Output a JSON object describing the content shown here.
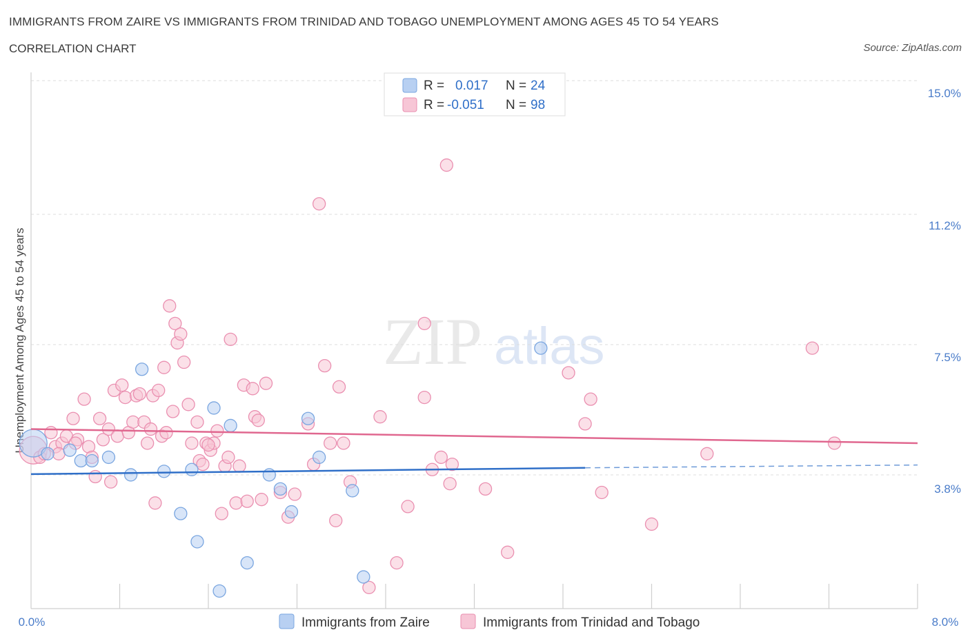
{
  "header": {
    "title": "IMMIGRANTS FROM ZAIRE VS IMMIGRANTS FROM TRINIDAD AND TOBAGO UNEMPLOYMENT AMONG AGES 45 TO 54 YEARS",
    "subtitle": "CORRELATION CHART",
    "source": "Source: ZipAtlas.com"
  },
  "watermark": {
    "zip": "ZIP",
    "atlas": "atlas"
  },
  "colors": {
    "zaire_fill": "#b8d0f2",
    "zaire_stroke": "#7aa6e0",
    "zaire_line": "#2f6fc8",
    "tt_fill": "#f7c6d6",
    "tt_stroke": "#ea8fb0",
    "tt_line": "#e0678f",
    "tick_text": "#4a7cc9",
    "grid": "#dddddd"
  },
  "legend_top": {
    "r1_label": "R = ",
    "r1_value": "0.017",
    "n1_label": "N = ",
    "n1_value": "24",
    "r2_label": "R = ",
    "r2_value": "-0.051",
    "n2_label": "N = ",
    "n2_value": "98"
  },
  "chart_data": {
    "type": "scatter",
    "title": "IMMIGRANTS FROM ZAIRE VS IMMIGRANTS FROM TRINIDAD AND TOBAGO UNEMPLOYMENT AMONG AGES 45 TO 54 YEARS",
    "xlabel": "",
    "ylabel": "Unemployment Among Ages 45 to 54 years",
    "xlim": [
      0,
      8.0
    ],
    "ylim": [
      0,
      15.0
    ],
    "x_tick_labels": [
      "0.0%",
      "8.0%"
    ],
    "y_ticks": [
      3.8,
      7.5,
      11.2,
      15.0
    ],
    "y_tick_labels": [
      "3.8%",
      "7.5%",
      "11.2%",
      "15.0%"
    ],
    "grid": true,
    "legend_position": "bottom",
    "series": [
      {
        "name": "Immigrants from Zaire",
        "R": 0.017,
        "N": 24,
        "trend": {
          "x0": 0,
          "y0": 3.82,
          "x1": 5.0,
          "y1": 4.0,
          "dash_x1": 8.0,
          "dash_y1": 4.08
        },
        "points": [
          [
            0.02,
            4.7,
            20
          ],
          [
            0.35,
            4.5,
            9
          ],
          [
            0.45,
            4.2,
            9
          ],
          [
            0.7,
            4.3,
            9
          ],
          [
            0.9,
            3.8,
            9
          ],
          [
            1.2,
            3.9,
            9
          ],
          [
            1.0,
            6.8,
            9
          ],
          [
            1.65,
            5.7,
            9
          ],
          [
            1.35,
            2.7,
            9
          ],
          [
            1.45,
            3.95,
            9
          ],
          [
            1.5,
            1.9,
            9
          ],
          [
            1.8,
            5.2,
            9
          ],
          [
            1.7,
            0.5,
            9
          ],
          [
            1.95,
            1.3,
            9
          ],
          [
            2.15,
            3.8,
            9
          ],
          [
            2.25,
            3.4,
            9
          ],
          [
            2.35,
            2.75,
            9
          ],
          [
            2.5,
            5.4,
            9
          ],
          [
            2.6,
            4.3,
            9
          ],
          [
            2.9,
            3.35,
            9
          ],
          [
            3.0,
            0.9,
            9
          ],
          [
            4.6,
            7.4,
            9
          ],
          [
            0.55,
            4.2,
            9
          ],
          [
            0.15,
            4.4,
            9
          ]
        ]
      },
      {
        "name": "Immigrants from Trinidad and Tobago",
        "R": -0.051,
        "N": 98,
        "trend": {
          "x0": 0,
          "y0": 5.1,
          "x1": 8.0,
          "y1": 4.7
        },
        "points": [
          [
            0.02,
            4.5,
            20
          ],
          [
            0.08,
            4.3,
            9
          ],
          [
            0.12,
            4.4,
            9
          ],
          [
            0.18,
            5.0,
            9
          ],
          [
            0.22,
            4.6,
            9
          ],
          [
            0.28,
            4.7,
            9
          ],
          [
            0.32,
            4.9,
            9
          ],
          [
            0.38,
            5.4,
            9
          ],
          [
            0.42,
            4.8,
            9
          ],
          [
            0.48,
            5.95,
            9
          ],
          [
            0.52,
            4.6,
            9
          ],
          [
            0.55,
            4.3,
            9
          ],
          [
            0.58,
            3.75,
            9
          ],
          [
            0.62,
            5.4,
            9
          ],
          [
            0.65,
            4.8,
            9
          ],
          [
            0.7,
            5.1,
            9
          ],
          [
            0.72,
            3.6,
            9
          ],
          [
            0.75,
            6.2,
            9
          ],
          [
            0.78,
            4.9,
            9
          ],
          [
            0.82,
            6.35,
            9
          ],
          [
            0.85,
            6.0,
            9
          ],
          [
            0.88,
            5.0,
            9
          ],
          [
            0.92,
            5.3,
            9
          ],
          [
            0.95,
            6.05,
            9
          ],
          [
            0.98,
            6.1,
            9
          ],
          [
            1.02,
            5.3,
            9
          ],
          [
            1.05,
            4.7,
            9
          ],
          [
            1.08,
            5.1,
            9
          ],
          [
            1.1,
            6.05,
            9
          ],
          [
            1.12,
            3.0,
            9
          ],
          [
            1.15,
            6.2,
            9
          ],
          [
            1.18,
            4.9,
            9
          ],
          [
            1.2,
            6.85,
            9
          ],
          [
            1.22,
            5.0,
            9
          ],
          [
            1.25,
            8.6,
            9
          ],
          [
            1.28,
            5.6,
            9
          ],
          [
            1.3,
            8.1,
            9
          ],
          [
            1.32,
            7.55,
            9
          ],
          [
            1.35,
            7.8,
            9
          ],
          [
            1.38,
            7.0,
            9
          ],
          [
            1.42,
            5.8,
            9
          ],
          [
            1.45,
            4.7,
            9
          ],
          [
            1.5,
            5.3,
            9
          ],
          [
            1.52,
            4.2,
            9
          ],
          [
            1.55,
            4.1,
            9
          ],
          [
            1.58,
            4.7,
            9
          ],
          [
            1.62,
            4.5,
            9
          ],
          [
            1.65,
            4.7,
            9
          ],
          [
            1.68,
            5.05,
            9
          ],
          [
            1.72,
            2.7,
            9
          ],
          [
            1.75,
            4.05,
            9
          ],
          [
            1.78,
            4.3,
            9
          ],
          [
            1.8,
            7.65,
            9
          ],
          [
            1.85,
            3.0,
            9
          ],
          [
            1.88,
            4.05,
            9
          ],
          [
            1.92,
            6.35,
            9
          ],
          [
            1.95,
            3.05,
            9
          ],
          [
            2.0,
            6.25,
            9
          ],
          [
            2.02,
            5.45,
            9
          ],
          [
            2.05,
            5.35,
            9
          ],
          [
            2.08,
            3.1,
            9
          ],
          [
            2.12,
            6.4,
            9
          ],
          [
            2.25,
            3.3,
            9
          ],
          [
            2.32,
            2.6,
            9
          ],
          [
            2.38,
            3.25,
            9
          ],
          [
            2.5,
            5.25,
            9
          ],
          [
            2.6,
            11.5,
            9
          ],
          [
            2.65,
            6.9,
            9
          ],
          [
            2.7,
            4.7,
            9
          ],
          [
            2.75,
            2.5,
            9
          ],
          [
            2.78,
            6.3,
            9
          ],
          [
            2.82,
            4.7,
            9
          ],
          [
            2.88,
            3.6,
            9
          ],
          [
            3.15,
            5.45,
            9
          ],
          [
            3.3,
            1.3,
            9
          ],
          [
            3.4,
            2.9,
            9
          ],
          [
            3.55,
            6.0,
            9
          ],
          [
            3.62,
            3.95,
            9
          ],
          [
            3.7,
            4.3,
            9
          ],
          [
            3.78,
            3.55,
            9
          ],
          [
            3.75,
            12.6,
            9
          ],
          [
            3.55,
            8.1,
            9
          ],
          [
            3.8,
            4.1,
            9
          ],
          [
            4.1,
            3.4,
            9
          ],
          [
            4.3,
            1.6,
            9
          ],
          [
            4.85,
            6.7,
            9
          ],
          [
            5.0,
            5.25,
            9
          ],
          [
            5.05,
            5.95,
            9
          ],
          [
            5.15,
            3.3,
            9
          ],
          [
            5.6,
            2.4,
            9
          ],
          [
            6.1,
            4.4,
            9
          ],
          [
            7.05,
            7.4,
            9
          ],
          [
            7.25,
            4.7,
            9
          ],
          [
            3.05,
            0.6,
            9
          ],
          [
            0.4,
            4.7,
            9
          ],
          [
            0.25,
            4.4,
            9
          ],
          [
            1.6,
            4.65,
            9
          ],
          [
            2.55,
            4.1,
            9
          ]
        ]
      }
    ]
  },
  "legend_bottom": {
    "items": [
      {
        "label": "Immigrants from Zaire"
      },
      {
        "label": "Immigrants from Trinidad and Tobago"
      }
    ]
  }
}
